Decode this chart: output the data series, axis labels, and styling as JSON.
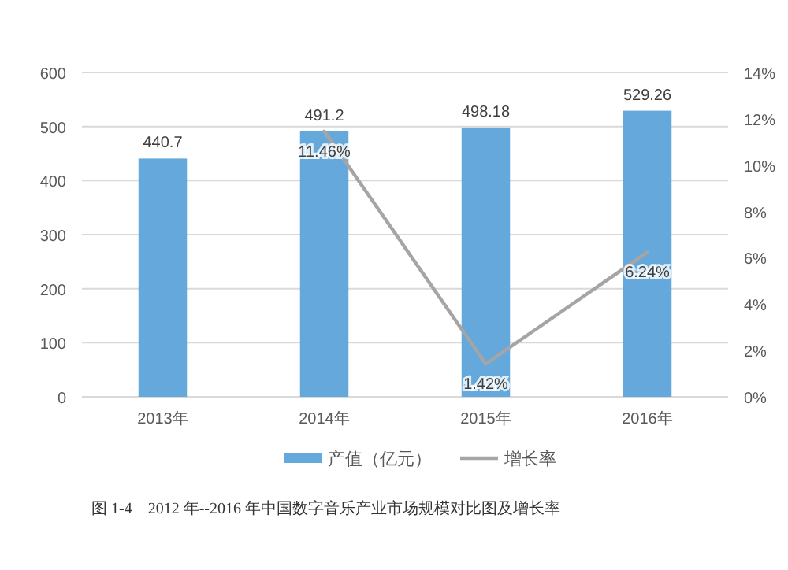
{
  "chart_data": {
    "type": "bar",
    "categories": [
      "2013年",
      "2014年",
      "2015年",
      "2016年"
    ],
    "series": [
      {
        "name": "产值（亿元）",
        "color": "#65a9dc",
        "values": [
          440.7,
          491.2,
          498.18,
          529.26
        ],
        "value_labels": [
          "440.7",
          "491.2",
          "498.18",
          "529.26"
        ]
      },
      {
        "name": "增长率",
        "type": "line",
        "axis": "y2",
        "color": "#a5a5a5",
        "values": [
          null,
          11.46,
          1.42,
          6.24
        ],
        "value_labels": [
          null,
          "11.46%",
          "1.42%",
          "6.24%"
        ]
      }
    ],
    "ylim": [
      0,
      600
    ],
    "yticks": [
      0,
      100,
      200,
      300,
      400,
      500,
      600
    ],
    "y2lim": [
      0,
      14
    ],
    "y2ticks": [
      {
        "value": 0,
        "label": "0%"
      },
      {
        "value": 2,
        "label": "2%"
      },
      {
        "value": 4,
        "label": "4%"
      },
      {
        "value": 6,
        "label": "6%"
      },
      {
        "value": 8,
        "label": "8%"
      },
      {
        "value": 10,
        "label": "10%"
      },
      {
        "value": 12,
        "label": "12%"
      },
      {
        "value": 14,
        "label": "14%"
      }
    ],
    "grid": "y",
    "legend": "bottom",
    "marker": "none",
    "line_style": "solid",
    "annotations": [
      "图 1-4　2012 年--2016 年中国数字音乐产业市场规模对比图及增长率"
    ]
  }
}
